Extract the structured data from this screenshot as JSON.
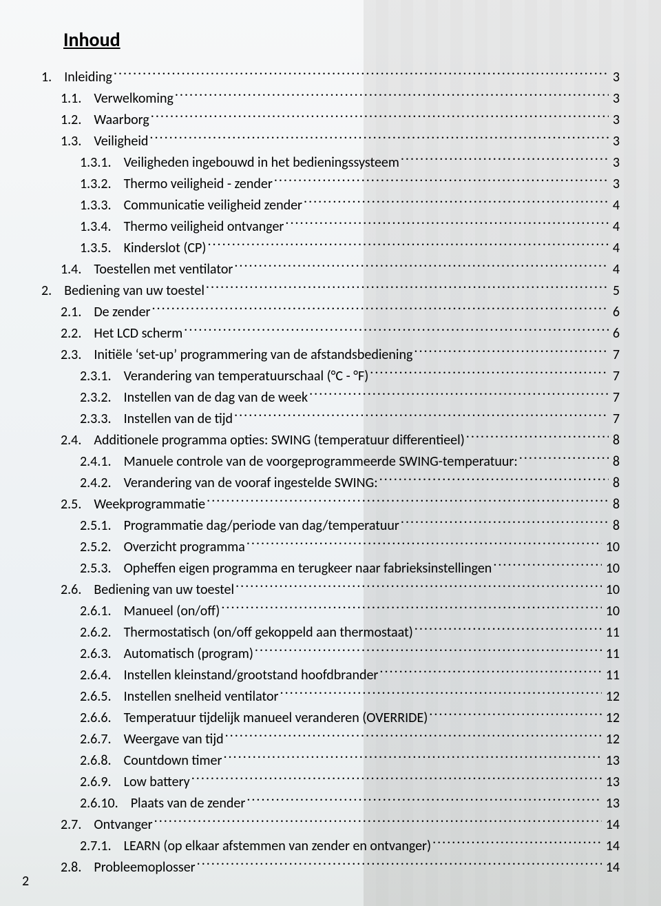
{
  "heading": "Inhoud",
  "page_number": "2",
  "style": {
    "font_family": "Calibri",
    "heading_fontsize_pt": 21,
    "body_fontsize_pt": 15,
    "text_color": "#000000",
    "background_base": "#eceff1",
    "leader_char": "."
  },
  "entries": [
    {
      "level": 1,
      "num": "1.",
      "title": "Inleiding",
      "page": "3"
    },
    {
      "level": 2,
      "num": "1.1.",
      "title": "Verwelkoming",
      "page": "3"
    },
    {
      "level": 2,
      "num": "1.2.",
      "title": "Waarborg",
      "page": "3"
    },
    {
      "level": 2,
      "num": "1.3.",
      "title": "Veiligheid",
      "page": "3"
    },
    {
      "level": 3,
      "num": "1.3.1.",
      "title": "Veiligheden ingebouwd in het bedieningssysteem",
      "page": "3"
    },
    {
      "level": 3,
      "num": "1.3.2.",
      "title": "Thermo veiligheid - zender",
      "page": "3"
    },
    {
      "level": 3,
      "num": "1.3.3.",
      "title": "Communicatie veiligheid zender",
      "page": "4"
    },
    {
      "level": 3,
      "num": "1.3.4.",
      "title": "Thermo veiligheid  ontvanger",
      "page": "4"
    },
    {
      "level": 3,
      "num": "1.3.5.",
      "title": "Kinderslot (CP)",
      "page": "4"
    },
    {
      "level": 2,
      "num": "1.4.",
      "title": "Toestellen met ventilator",
      "page": "4"
    },
    {
      "level": 1,
      "num": "2.",
      "title": "Bediening van uw toestel",
      "page": "5"
    },
    {
      "level": 2,
      "num": "2.1.",
      "title": "De zender",
      "page": "6"
    },
    {
      "level": 2,
      "num": "2.2.",
      "title": "Het LCD scherm",
      "page": "6"
    },
    {
      "level": 2,
      "num": "2.3.",
      "title": "Initiële ‘set-up’ programmering van de afstandsbediening",
      "page": "7"
    },
    {
      "level": 3,
      "num": "2.3.1.",
      "title": "Verandering van temperatuurschaal (°C - °F)",
      "page": "7"
    },
    {
      "level": 3,
      "num": "2.3.2.",
      "title": "Instellen van de dag van de week",
      "page": "7"
    },
    {
      "level": 3,
      "num": "2.3.3.",
      "title": "Instellen van de tijd",
      "page": "7"
    },
    {
      "level": 2,
      "num": "2.4.",
      "title": "Additionele programma opties: SWING (temperatuur differentieel)",
      "page": "8"
    },
    {
      "level": 3,
      "num": "2.4.1.",
      "title": "Manuele controle van de voorgeprogrammeerde SWING-temperatuur:",
      "page": "8"
    },
    {
      "level": 3,
      "num": "2.4.2.",
      "title": "Verandering van de vooraf ingestelde SWING:",
      "page": "8"
    },
    {
      "level": 2,
      "num": "2.5.",
      "title": "Weekprogrammatie",
      "page": "8"
    },
    {
      "level": 3,
      "num": "2.5.1.",
      "title": "Programmatie dag/periode van dag/temperatuur",
      "page": "8"
    },
    {
      "level": 3,
      "num": "2.5.2.",
      "title": "Overzicht programma",
      "page": "10"
    },
    {
      "level": 3,
      "num": "2.5.3.",
      "title": "Opheffen eigen programma en terugkeer naar fabrieksinstellingen",
      "page": "10"
    },
    {
      "level": 2,
      "num": "2.6.",
      "title": "Bediening van uw toestel",
      "page": "10"
    },
    {
      "level": 3,
      "num": "2.6.1.",
      "title": "Manueel (on/off)",
      "page": "10"
    },
    {
      "level": 3,
      "num": "2.6.2.",
      "title": "Thermostatisch (on/off gekoppeld aan thermostaat)",
      "page": "11"
    },
    {
      "level": 3,
      "num": "2.6.3.",
      "title": "Automatisch (program)",
      "page": "11"
    },
    {
      "level": 3,
      "num": "2.6.4.",
      "title": "Instellen kleinstand/grootstand hoofdbrander",
      "page": "11"
    },
    {
      "level": 3,
      "num": "2.6.5.",
      "title": "Instellen snelheid ventilator",
      "page": "12"
    },
    {
      "level": 3,
      "num": "2.6.6.",
      "title": "Temperatuur tijdelijk manueel veranderen (OVERRIDE)",
      "page": "12"
    },
    {
      "level": 3,
      "num": "2.6.7.",
      "title": "Weergave van tijd",
      "page": "12"
    },
    {
      "level": 3,
      "num": "2.6.8.",
      "title": "Countdown timer",
      "page": "13"
    },
    {
      "level": 3,
      "num": "2.6.9.",
      "title": "Low battery",
      "page": "13"
    },
    {
      "level": 3,
      "num": "2.6.10.",
      "title": "Plaats van de zender",
      "page": "13"
    },
    {
      "level": 2,
      "num": "2.7.",
      "title": "Ontvanger",
      "page": "14"
    },
    {
      "level": 3,
      "num": "2.7.1.",
      "title": "LEARN (op elkaar afstemmen van zender en ontvanger)",
      "page": "14"
    },
    {
      "level": 2,
      "num": "2.8.",
      "title": "Probleemoplosser",
      "page": "14"
    }
  ]
}
